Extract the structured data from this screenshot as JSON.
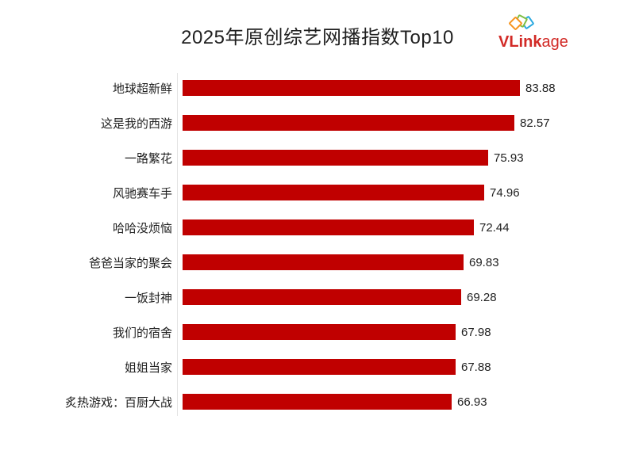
{
  "page": {
    "background": "#ffffff"
  },
  "header": {
    "logo": {
      "brand": "VLinkage",
      "text_bold": "VLink",
      "text_light": "age",
      "color": "#d22a26",
      "icon": "photo-stack-icon",
      "icon_colors": {
        "orange": "#f7941e",
        "green": "#7fbe42",
        "blue": "#2ba9e0"
      }
    }
  },
  "chart_data": {
    "type": "bar",
    "orientation": "horizontal",
    "title": "2025年原创综艺网播指数Top10",
    "categories": [
      "地球超新鲜",
      "这是我的西游",
      "一路繁花",
      "风驰赛车手",
      "哈哈没烦恼",
      "爸爸当家的聚会",
      "一饭封神",
      "我们的宿舍",
      "姐姐当家",
      "炙热游戏：百厨大战"
    ],
    "values": [
      83.88,
      82.57,
      75.93,
      74.96,
      72.44,
      69.83,
      69.28,
      67.98,
      67.88,
      66.93
    ],
    "value_labels": [
      "83.88",
      "82.57",
      "75.93",
      "74.96",
      "72.44",
      "69.83",
      "69.28",
      "67.98",
      "67.88",
      "66.93"
    ],
    "xlabel": "",
    "ylabel": "",
    "xlim": [
      0,
      84
    ],
    "grid": false,
    "legend": null,
    "bar_color": "#c00000",
    "label_color": "#1f1f1f",
    "axis_line_color": "#e3e3e3"
  }
}
